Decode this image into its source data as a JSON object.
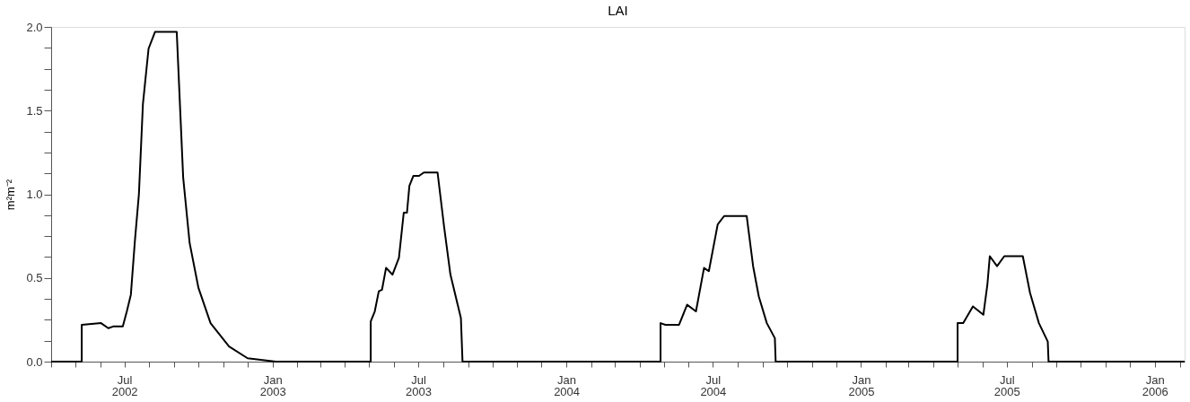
{
  "chart_data": {
    "type": "line",
    "title": "LAI",
    "ylabel": "m²m⁻²",
    "x": [
      "2002-04-01",
      "2002-05-09",
      "2002-05-09",
      "2002-06-02",
      "2002-06-11",
      "2002-06-17",
      "2002-06-29",
      "2002-07-04",
      "2002-07-09",
      "2002-07-14",
      "2002-07-19",
      "2002-07-24",
      "2002-07-31",
      "2002-08-08",
      "2002-09-04",
      "2002-09-12",
      "2002-09-20",
      "2002-10-01",
      "2002-10-16",
      "2002-11-08",
      "2002-12-01",
      "2003-01-05",
      "2003-05-03",
      "2003-05-03",
      "2003-05-08",
      "2003-05-13",
      "2003-05-17",
      "2003-05-22",
      "2003-05-30",
      "2003-06-07",
      "2003-06-13",
      "2003-06-17",
      "2003-06-20",
      "2003-06-25",
      "2003-07-02",
      "2003-07-08",
      "2003-07-25",
      "2003-08-02",
      "2003-08-10",
      "2003-08-23",
      "2003-08-25",
      "2004-04-27",
      "2004-04-27",
      "2004-05-03",
      "2004-05-20",
      "2004-05-30",
      "2004-06-10",
      "2004-06-20",
      "2004-06-26",
      "2004-07-07",
      "2004-07-15",
      "2004-08-12",
      "2004-08-20",
      "2004-08-27",
      "2004-09-06",
      "2004-09-16",
      "2004-09-17",
      "2005-05-01",
      "2005-05-01",
      "2005-05-08",
      "2005-05-20",
      "2005-06-02",
      "2005-06-07",
      "2005-06-10",
      "2005-06-19",
      "2005-06-28",
      "2005-07-21",
      "2005-07-30",
      "2005-08-10",
      "2005-08-21",
      "2005-08-22",
      "2006-02-07"
    ],
    "series": [
      {
        "color": "#000000",
        "values": [
          0,
          0,
          0.22,
          0.23,
          0.2,
          0.21,
          0.21,
          0.3,
          0.4,
          0.72,
          1.0,
          1.54,
          1.87,
          1.97,
          1.97,
          1.1,
          0.71,
          0.44,
          0.23,
          0.09,
          0.02,
          0,
          0,
          0.24,
          0.3,
          0.42,
          0.43,
          0.56,
          0.52,
          0.62,
          0.89,
          0.89,
          1.05,
          1.11,
          1.11,
          1.13,
          1.13,
          0.81,
          0.52,
          0.26,
          0,
          0,
          0.23,
          0.22,
          0.22,
          0.34,
          0.3,
          0.56,
          0.54,
          0.82,
          0.87,
          0.87,
          0.57,
          0.39,
          0.23,
          0.14,
          0,
          0,
          0.23,
          0.23,
          0.33,
          0.28,
          0.46,
          0.63,
          0.57,
          0.63,
          0.63,
          0.41,
          0.23,
          0.12,
          0,
          0
        ]
      }
    ],
    "xlim": [
      "2002-04-01",
      "2006-02-07"
    ],
    "xticks": [
      {
        "value": "2002-04",
        "label": null
      },
      {
        "value": "2002-05",
        "label": null
      },
      {
        "value": "2002-06",
        "label": null
      },
      {
        "value": "2002-07",
        "label": "Jul 2002"
      },
      {
        "value": "2002-08",
        "label": null
      },
      {
        "value": "2002-09",
        "label": null
      },
      {
        "value": "2002-10",
        "label": null
      },
      {
        "value": "2002-11",
        "label": null
      },
      {
        "value": "2002-12",
        "label": null
      },
      {
        "value": "2003-01",
        "label": "Jan 2003"
      },
      {
        "value": "2003-02",
        "label": null
      },
      {
        "value": "2003-03",
        "label": null
      },
      {
        "value": "2003-04",
        "label": null
      },
      {
        "value": "2003-05",
        "label": null
      },
      {
        "value": "2003-06",
        "label": null
      },
      {
        "value": "2003-07",
        "label": "Jul 2003"
      },
      {
        "value": "2003-08",
        "label": null
      },
      {
        "value": "2003-09",
        "label": null
      },
      {
        "value": "2003-10",
        "label": null
      },
      {
        "value": "2003-11",
        "label": null
      },
      {
        "value": "2003-12",
        "label": null
      },
      {
        "value": "2004-01",
        "label": "Jan 2004"
      },
      {
        "value": "2004-02",
        "label": null
      },
      {
        "value": "2004-03",
        "label": null
      },
      {
        "value": "2004-04",
        "label": null
      },
      {
        "value": "2004-05",
        "label": null
      },
      {
        "value": "2004-06",
        "label": null
      },
      {
        "value": "2004-07",
        "label": "Jul 2004"
      },
      {
        "value": "2004-08",
        "label": null
      },
      {
        "value": "2004-09",
        "label": null
      },
      {
        "value": "2004-10",
        "label": null
      },
      {
        "value": "2004-11",
        "label": null
      },
      {
        "value": "2004-12",
        "label": null
      },
      {
        "value": "2005-01",
        "label": "Jan 2005"
      },
      {
        "value": "2005-02",
        "label": null
      },
      {
        "value": "2005-03",
        "label": null
      },
      {
        "value": "2005-04",
        "label": null
      },
      {
        "value": "2005-05",
        "label": null
      },
      {
        "value": "2005-06",
        "label": null
      },
      {
        "value": "2005-07",
        "label": "Jul 2005"
      },
      {
        "value": "2005-08",
        "label": null
      },
      {
        "value": "2005-09",
        "label": null
      },
      {
        "value": "2005-10",
        "label": null
      },
      {
        "value": "2005-11",
        "label": null
      },
      {
        "value": "2005-12",
        "label": null
      },
      {
        "value": "2006-01",
        "label": "Jan 2006"
      },
      {
        "value": "2006-02",
        "label": null
      }
    ],
    "ylim": [
      0,
      2.0
    ],
    "yticks": [
      {
        "value": 0,
        "label": "0.0"
      },
      {
        "value": 0.125,
        "label": null
      },
      {
        "value": 0.25,
        "label": null
      },
      {
        "value": 0.375,
        "label": null
      },
      {
        "value": 0.5,
        "label": "0.5"
      },
      {
        "value": 0.625,
        "label": null
      },
      {
        "value": 0.75,
        "label": null
      },
      {
        "value": 0.875,
        "label": null
      },
      {
        "value": 1.0,
        "label": "1.0"
      },
      {
        "value": 1.125,
        "label": null
      },
      {
        "value": 1.25,
        "label": null
      },
      {
        "value": 1.375,
        "label": null
      },
      {
        "value": 1.5,
        "label": "1.5"
      },
      {
        "value": 1.625,
        "label": null
      },
      {
        "value": 1.75,
        "label": null
      },
      {
        "value": 1.875,
        "label": null
      },
      {
        "value": 2.0,
        "label": "2.0"
      }
    ],
    "grid": false,
    "legend": false,
    "marker": "none",
    "line_style": "solid"
  }
}
